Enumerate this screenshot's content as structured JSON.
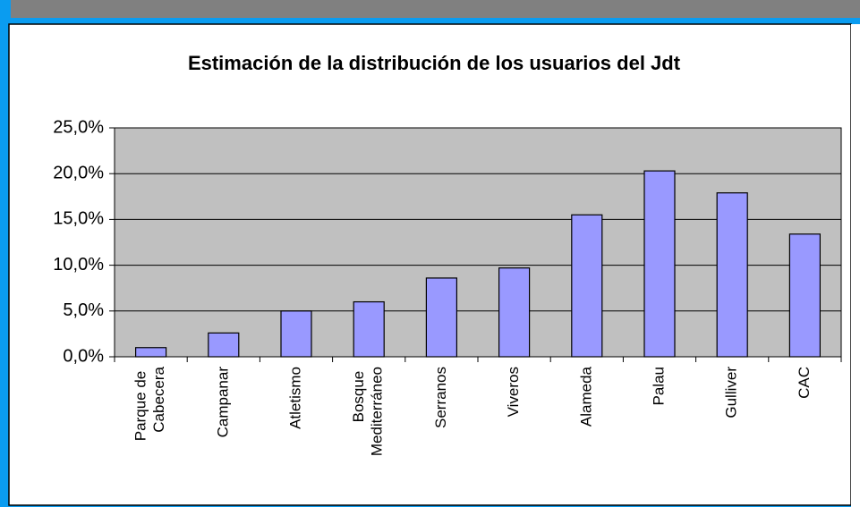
{
  "chart_data": {
    "type": "bar",
    "title": "Estimación de la distribución de los usuarios del Jdt",
    "categories": [
      "Parque de Cabecera",
      "Campanar",
      "Atletismo",
      "Bosque Mediterráneo",
      "Serranos",
      "Viveros",
      "Alameda",
      "Palau",
      "Gulliver",
      "CAC"
    ],
    "values": [
      1.0,
      2.6,
      5.0,
      6.0,
      8.6,
      9.7,
      15.5,
      20.3,
      17.9,
      13.4
    ],
    "color": "#9999ff",
    "ylim": [
      0,
      25
    ],
    "yticks": [
      {
        "value": 0,
        "label": "0,0%"
      },
      {
        "value": 5,
        "label": "5,0%"
      },
      {
        "value": 10,
        "label": "10,0%"
      },
      {
        "value": 15,
        "label": "15,0%"
      },
      {
        "value": 20,
        "label": "20,0%"
      },
      {
        "value": 25,
        "label": "25,0%"
      }
    ],
    "grid": true
  }
}
